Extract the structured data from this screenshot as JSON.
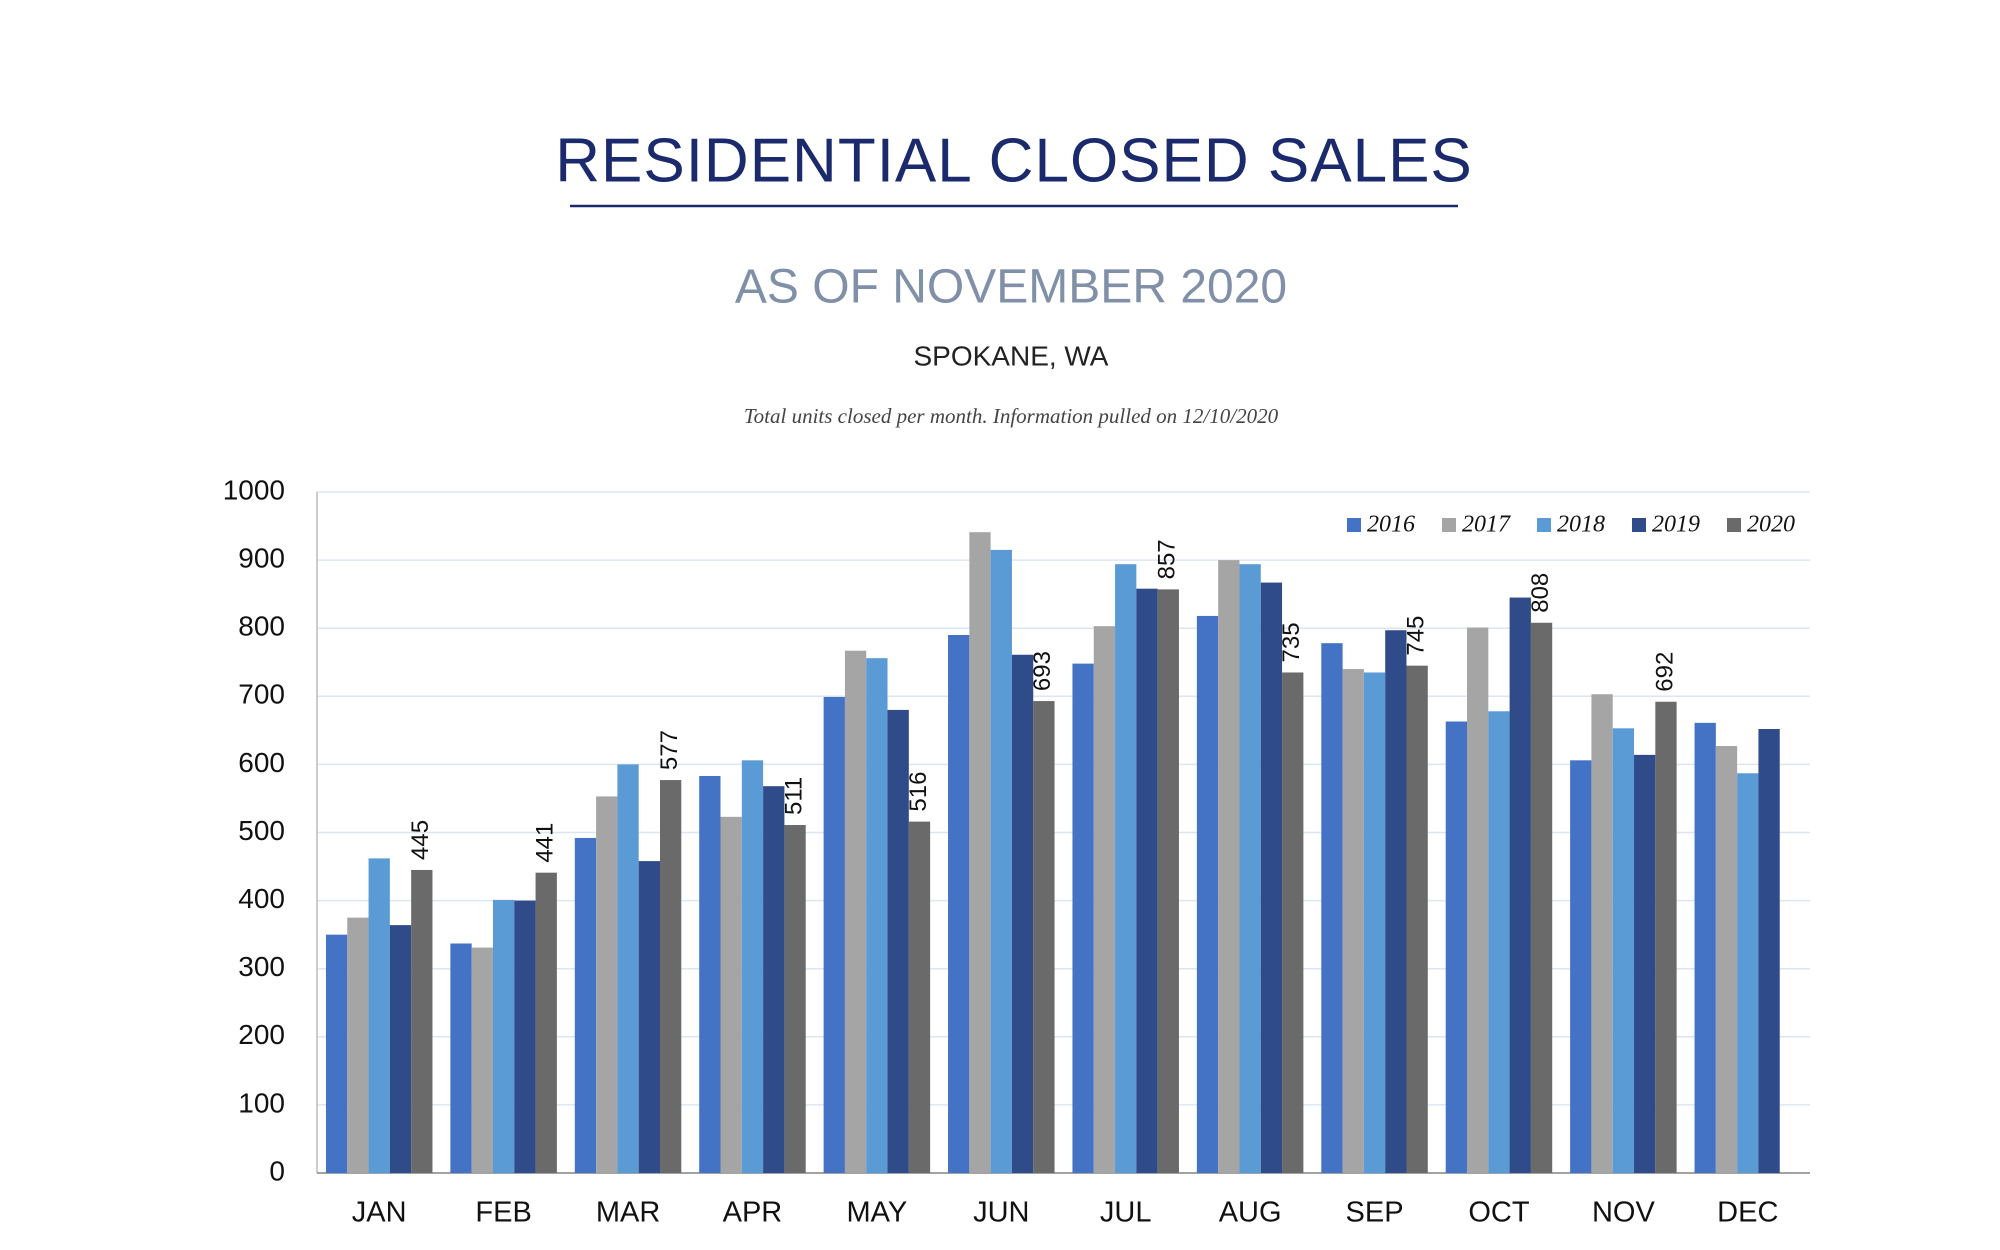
{
  "chart_data": {
    "type": "bar",
    "title": "RESIDENTIAL CLOSED SALES",
    "subtitle": "AS OF NOVEMBER 2020",
    "location": "SPOKANE, WA",
    "note": "Total units closed per month.  Information pulled on 12/10/2020",
    "categories": [
      "JAN",
      "FEB",
      "MAR",
      "APR",
      "MAY",
      "JUN",
      "JUL",
      "AUG",
      "SEP",
      "OCT",
      "NOV",
      "DEC"
    ],
    "series": [
      {
        "name": "2016",
        "color": "#4472c4",
        "values": [
          350,
          337,
          492,
          583,
          699,
          790,
          748,
          818,
          778,
          663,
          606,
          661
        ]
      },
      {
        "name": "2017",
        "color": "#a5a5a5",
        "values": [
          375,
          331,
          553,
          523,
          767,
          941,
          803,
          900,
          740,
          801,
          703,
          627
        ]
      },
      {
        "name": "2018",
        "color": "#5b9bd5",
        "values": [
          462,
          401,
          600,
          606,
          756,
          915,
          894,
          894,
          735,
          678,
          653,
          587
        ]
      },
      {
        "name": "2019",
        "color": "#2f4b8a",
        "values": [
          364,
          400,
          458,
          568,
          680,
          761,
          858,
          867,
          797,
          845,
          614,
          652
        ]
      },
      {
        "name": "2020",
        "color": "#6a6a6a",
        "values": [
          445,
          441,
          577,
          511,
          516,
          693,
          857,
          735,
          745,
          808,
          692,
          null
        ],
        "show_labels": true
      }
    ],
    "ylim": [
      0,
      1000
    ],
    "yticks": [
      0,
      100,
      200,
      300,
      400,
      500,
      600,
      700,
      800,
      900,
      1000
    ],
    "grid": true,
    "legend": "top-right"
  }
}
